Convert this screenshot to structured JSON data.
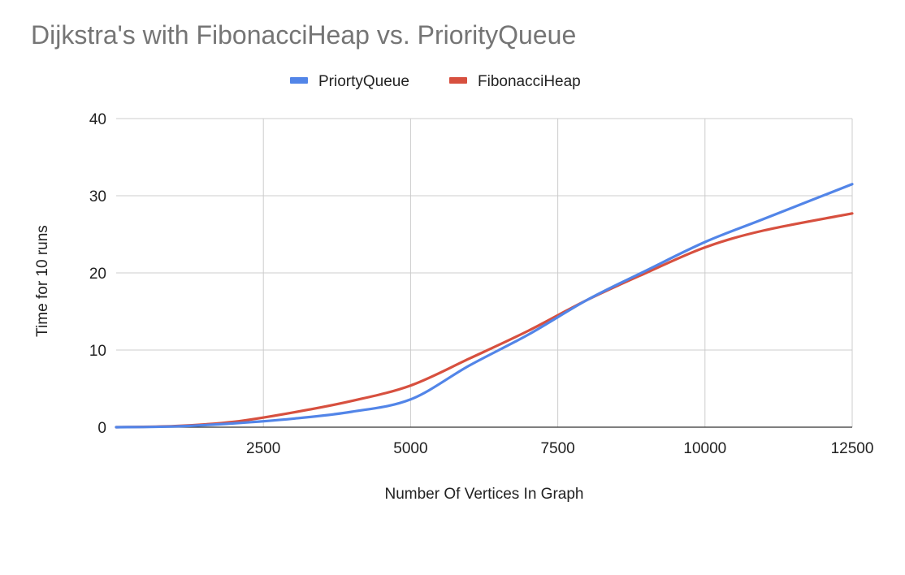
{
  "chart_data": {
    "type": "line",
    "title": "Dijkstra's with FibonacciHeap vs. PriorityQueue",
    "xlabel": "Number Of Vertices In Graph",
    "ylabel": "Time for 10 runs",
    "xlim": [
      0,
      12500
    ],
    "ylim": [
      0,
      40
    ],
    "x_ticks": [
      2500,
      5000,
      7500,
      10000,
      12500
    ],
    "y_ticks": [
      0,
      10,
      20,
      30,
      40
    ],
    "grid": true,
    "legend_position": "top",
    "series": [
      {
        "name": "PriortyQueue",
        "color": "#5285e8",
        "x": [
          0,
          1000,
          2000,
          3000,
          4000,
          5000,
          6000,
          7000,
          8000,
          9000,
          10000,
          11000,
          12500
        ],
        "y": [
          0,
          0.1,
          0.5,
          1.1,
          2.0,
          3.6,
          8.0,
          12.0,
          16.5,
          20.3,
          24.0,
          27.0,
          31.5
        ]
      },
      {
        "name": "FibonacciHeap",
        "color": "#d7503f",
        "x": [
          0,
          1000,
          2000,
          3000,
          4000,
          5000,
          6000,
          7000,
          8000,
          9000,
          10000,
          11000,
          12500
        ],
        "y": [
          0,
          0.15,
          0.7,
          1.9,
          3.4,
          5.4,
          8.9,
          12.5,
          16.5,
          20.0,
          23.3,
          25.5,
          27.7
        ]
      }
    ]
  }
}
